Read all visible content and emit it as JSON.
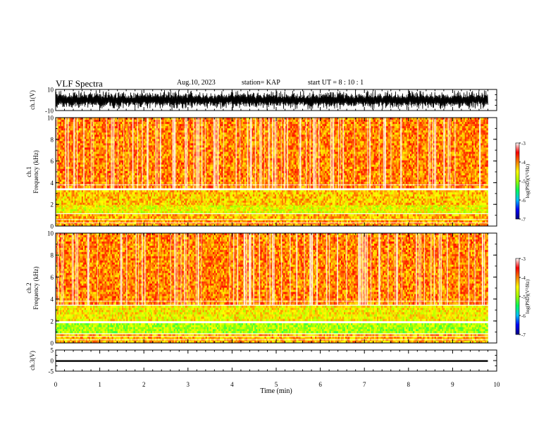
{
  "header": {
    "title": "VLF Spectra",
    "date": "Aug.10, 2023",
    "station": "station= KAP",
    "start": "start  UT =   8 : 10 : 1"
  },
  "chart_data": [
    {
      "type": "line",
      "panel": "ch1-waveform",
      "ylabel": "ch.1(V)",
      "ylim": [
        -10,
        10
      ],
      "yticks": [
        "10",
        "-10"
      ],
      "xlim": [
        0,
        10
      ],
      "data_extent_min": 9.8,
      "trace_color": "#000000",
      "description_level": "dense saturated waveform"
    },
    {
      "type": "heatmap",
      "panel": "ch1-spectrogram",
      "ylabel": "ch.1\nFrequency (kHz)",
      "ylim": [
        0,
        10
      ],
      "yticks": [
        "0",
        "2",
        "4",
        "6",
        "8",
        "10"
      ],
      "xlim": [
        0,
        10
      ],
      "data_extent_min": 9.8,
      "bands": [
        {
          "f_lo": 3.5,
          "f_hi": 10.0,
          "level": -4.0
        },
        {
          "f_lo": 1.2,
          "f_hi": 3.3,
          "level": -4.3
        },
        {
          "f_lo": 1.2,
          "f_hi": 1.9,
          "level": -4.6
        },
        {
          "f_lo": 0.5,
          "f_hi": 1.1,
          "level": -4.2
        },
        {
          "f_lo": 0.0,
          "f_hi": 0.5,
          "level": -4.1
        }
      ],
      "colorbar": {
        "label": "log(PSD)(V²/Hz)",
        "ticks": [
          "-3",
          "-4",
          "-5",
          "-6",
          "-7"
        ],
        "range": [
          -7,
          -3
        ],
        "colors": [
          "#000080",
          "#0000ff",
          "#00c0ff",
          "#00ff60",
          "#a0ff00",
          "#ffff00",
          "#ff8000",
          "#ff0000",
          "#ffffff"
        ]
      }
    },
    {
      "type": "heatmap",
      "panel": "ch2-spectrogram",
      "ylabel": "ch.2\nFrequency (kHz)",
      "ylim": [
        0,
        10
      ],
      "yticks": [
        "0",
        "2",
        "4",
        "6",
        "8",
        "10"
      ],
      "xlim": [
        0,
        10
      ],
      "data_extent_min": 9.8,
      "bands": [
        {
          "f_lo": 3.5,
          "f_hi": 10.0,
          "level": -4.0
        },
        {
          "f_lo": 2.0,
          "f_hi": 3.4,
          "level": -4.5
        },
        {
          "f_lo": 0.9,
          "f_hi": 1.8,
          "level": -4.9
        },
        {
          "f_lo": 0.0,
          "f_hi": 0.8,
          "level": -4.2
        }
      ],
      "colorbar": {
        "label": "log(PSD)(V²/Hz)",
        "ticks": [
          "-3",
          "-4",
          "-5",
          "-6",
          "-7"
        ],
        "range": [
          -7,
          -3
        ],
        "colors": [
          "#000080",
          "#0000ff",
          "#00c0ff",
          "#00ff60",
          "#a0ff00",
          "#ffff00",
          "#ff8000",
          "#ff0000",
          "#ffffff"
        ]
      }
    },
    {
      "type": "line",
      "panel": "ch3-waveform",
      "ylabel": "ch.3(V)",
      "ylim": [
        -5,
        5
      ],
      "yticks": [
        "5",
        "0",
        "-5"
      ],
      "xlim": [
        0,
        10
      ],
      "data_extent_min": 9.8,
      "trace_band": [
        -0.6,
        0.2
      ],
      "trace_color": "#000000"
    }
  ],
  "xaxis": {
    "label": "Time (min)",
    "ticks": [
      "0",
      "1",
      "2",
      "3",
      "4",
      "5",
      "6",
      "7",
      "8",
      "9",
      "10"
    ]
  }
}
